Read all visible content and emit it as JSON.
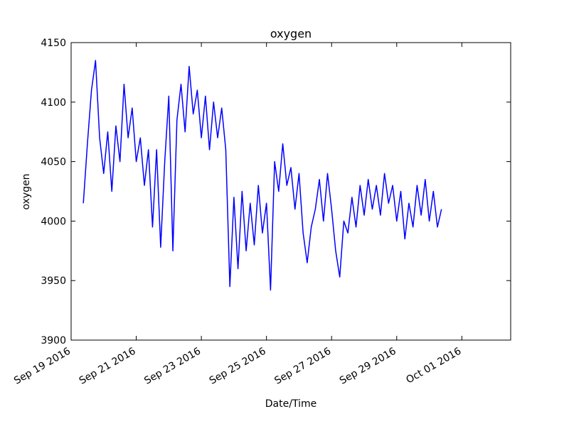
{
  "chart_data": {
    "type": "line",
    "title": "oxygen",
    "x_label": "Date/Time",
    "y_label": "oxygen",
    "color": "#0000ff",
    "x": [
      "2016-09-19T09:00",
      "2016-09-19T12:00",
      "2016-09-19T15:00",
      "2016-09-19T18:00",
      "2016-09-19T21:00",
      "2016-09-20T00:00",
      "2016-09-20T03:00",
      "2016-09-20T06:00",
      "2016-09-20T09:00",
      "2016-09-20T12:00",
      "2016-09-20T15:00",
      "2016-09-20T18:00",
      "2016-09-20T21:00",
      "2016-09-21T00:00",
      "2016-09-21T03:00",
      "2016-09-21T06:00",
      "2016-09-21T09:00",
      "2016-09-21T12:00",
      "2016-09-21T15:00",
      "2016-09-21T18:00",
      "2016-09-21T21:00",
      "2016-09-22T00:00",
      "2016-09-22T03:00",
      "2016-09-22T06:00",
      "2016-09-22T09:00",
      "2016-09-22T12:00",
      "2016-09-22T15:00",
      "2016-09-22T18:00",
      "2016-09-22T21:00",
      "2016-09-23T00:00",
      "2016-09-23T03:00",
      "2016-09-23T06:00",
      "2016-09-23T09:00",
      "2016-09-23T12:00",
      "2016-09-23T15:00",
      "2016-09-23T18:00",
      "2016-09-23T21:00",
      "2016-09-24T00:00",
      "2016-09-24T03:00",
      "2016-09-24T06:00",
      "2016-09-24T09:00",
      "2016-09-24T12:00",
      "2016-09-24T15:00",
      "2016-09-24T18:00",
      "2016-09-24T21:00",
      "2016-09-25T00:00",
      "2016-09-25T03:00",
      "2016-09-25T06:00",
      "2016-09-25T09:00",
      "2016-09-25T12:00",
      "2016-09-25T15:00",
      "2016-09-25T18:00",
      "2016-09-25T21:00",
      "2016-09-26T00:00",
      "2016-09-26T03:00",
      "2016-09-26T06:00",
      "2016-09-26T09:00",
      "2016-09-26T12:00",
      "2016-09-26T15:00",
      "2016-09-26T18:00",
      "2016-09-26T21:00",
      "2016-09-27T00:00",
      "2016-09-27T03:00",
      "2016-09-27T06:00",
      "2016-09-27T09:00",
      "2016-09-27T12:00",
      "2016-09-27T15:00",
      "2016-09-27T18:00",
      "2016-09-27T21:00",
      "2016-09-28T00:00",
      "2016-09-28T03:00",
      "2016-09-28T06:00",
      "2016-09-28T09:00",
      "2016-09-28T12:00",
      "2016-09-28T15:00",
      "2016-09-28T18:00",
      "2016-09-28T21:00",
      "2016-09-29T00:00",
      "2016-09-29T03:00",
      "2016-09-29T06:00",
      "2016-09-29T09:00",
      "2016-09-29T12:00",
      "2016-09-29T15:00",
      "2016-09-29T18:00",
      "2016-09-29T21:00",
      "2016-09-30T00:00",
      "2016-09-30T03:00",
      "2016-09-30T06:00",
      "2016-09-30T09:00"
    ],
    "values": [
      4015,
      4065,
      4110,
      4135,
      4070,
      4040,
      4075,
      4025,
      4080,
      4050,
      4115,
      4070,
      4095,
      4050,
      4070,
      4030,
      4060,
      3995,
      4060,
      3978,
      4050,
      4105,
      3975,
      4085,
      4115,
      4075,
      4130,
      4090,
      4110,
      4070,
      4105,
      4060,
      4100,
      4070,
      4095,
      4060,
      3945,
      4020,
      3960,
      4025,
      3975,
      4015,
      3980,
      4030,
      3990,
      4015,
      3942,
      4050,
      4025,
      4065,
      4030,
      4045,
      4010,
      4040,
      3990,
      3965,
      3995,
      4010,
      4035,
      4000,
      4040,
      4010,
      3975,
      3953,
      4000,
      3990,
      4020,
      3995,
      4030,
      4005,
      4035,
      4010,
      4030,
      4005,
      4040,
      4015,
      4030,
      4000,
      4025,
      3985,
      4015,
      3995,
      4030,
      4005,
      4035,
      4000,
      4025,
      3995,
      4010
    ],
    "xlim": [
      "2016-09-19T00:00",
      "2016-10-02T12:00"
    ],
    "xticks": [
      {
        "value": "2016-09-19T00:00",
        "label": "Sep 19 2016"
      },
      {
        "value": "2016-09-21T00:00",
        "label": "Sep 21 2016"
      },
      {
        "value": "2016-09-23T00:00",
        "label": "Sep 23 2016"
      },
      {
        "value": "2016-09-25T00:00",
        "label": "Sep 25 2016"
      },
      {
        "value": "2016-09-27T00:00",
        "label": "Sep 27 2016"
      },
      {
        "value": "2016-09-29T00:00",
        "label": "Sep 29 2016"
      },
      {
        "value": "2016-10-01T00:00",
        "label": "Oct 01 2016"
      }
    ],
    "ylim": [
      3900,
      4150
    ],
    "yticks": [
      3900,
      3950,
      4000,
      4050,
      4100,
      4150
    ],
    "grid": false
  }
}
